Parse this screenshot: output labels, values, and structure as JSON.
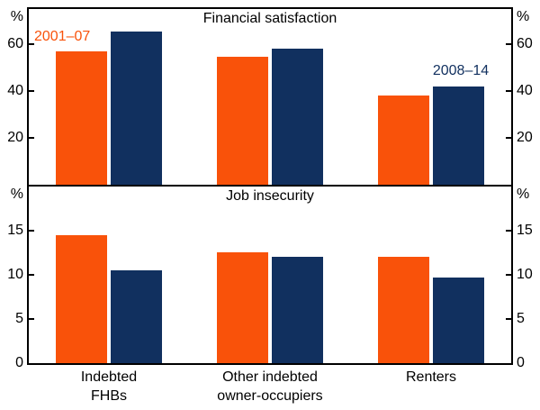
{
  "page": {
    "background": "#FFFFFF",
    "frame_color": "#000000"
  },
  "y_axis": {
    "unit_label": "%"
  },
  "x_axis": {
    "categories": [
      {
        "line1": "Indebted",
        "line2": "FHBs"
      },
      {
        "line1": "Other indebted",
        "line2": "owner-occupiers"
      },
      {
        "line1": "Renters",
        "line2": ""
      }
    ]
  },
  "legend": {
    "series_1_label": "2001–07",
    "series_2_label": "2008–14"
  },
  "chart_data": [
    {
      "type": "bar",
      "title": "Financial satisfaction",
      "categories": [
        "Indebted FHBs",
        "Other indebted owner-occupiers",
        "Renters"
      ],
      "ylabel": "%",
      "ylim": [
        0,
        75
      ],
      "yticks": [
        20,
        40,
        60
      ],
      "grid": false,
      "legend_position": "in-plot text annotations",
      "series": [
        {
          "name": "2001–07",
          "color": "#F9520A",
          "values": [
            57,
            54.5,
            38
          ]
        },
        {
          "name": "2008–14",
          "color": "#11305F",
          "values": [
            65.5,
            58,
            42
          ]
        }
      ]
    },
    {
      "type": "bar",
      "title": "Job insecurity",
      "categories": [
        "Indebted FHBs",
        "Other indebted owner-occupiers",
        "Renters"
      ],
      "ylabel": "%",
      "ylim": [
        0,
        20
      ],
      "yticks": [
        0,
        5,
        10,
        15
      ],
      "grid": false,
      "series": [
        {
          "name": "2001–07",
          "color": "#F9520A",
          "values": [
            14.5,
            12.5,
            12
          ]
        },
        {
          "name": "2008–14",
          "color": "#11305F",
          "values": [
            10.5,
            12,
            9.7
          ]
        }
      ]
    }
  ]
}
